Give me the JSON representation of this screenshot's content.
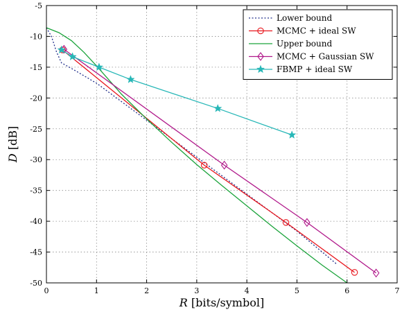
{
  "chart_data": {
    "type": "line",
    "xlabel": "R [bits/symbol]",
    "ylabel": "D [dB]",
    "xlim": [
      0,
      7
    ],
    "ylim": [
      -50,
      -5
    ],
    "xticks": [
      0,
      1,
      2,
      3,
      4,
      5,
      6,
      7
    ],
    "yticks": [
      -5,
      -10,
      -15,
      -20,
      -25,
      -30,
      -35,
      -40,
      -45,
      -50
    ],
    "grid": true,
    "legend_position": "top-right",
    "series": [
      {
        "name": "Lower bound",
        "color": "#1f2d8a",
        "style": "dotted",
        "marker": "none",
        "x": [
          0,
          0.1,
          0.2,
          0.3,
          0.5,
          1.0,
          2.0,
          3.0,
          4.0,
          5.0,
          5.8
        ],
        "y": [
          -8.6,
          -10.0,
          -12.5,
          -14.3,
          -15.2,
          -17.6,
          -23.6,
          -29.6,
          -35.6,
          -41.6,
          -47.0
        ]
      },
      {
        "name": "MCMC + ideal SW",
        "color": "#e8141b",
        "style": "solid",
        "marker": "circle",
        "x": [
          0.32,
          3.15,
          4.78,
          6.15
        ],
        "y": [
          -12.2,
          -30.9,
          -40.2,
          -48.3
        ]
      },
      {
        "name": "Upper bound",
        "color": "#1aa33a",
        "style": "solid",
        "marker": "none",
        "x": [
          0,
          0.25,
          0.5,
          0.75,
          1.0,
          1.5,
          2.0,
          2.5,
          3.0,
          3.5,
          4.0,
          4.5,
          5.0,
          5.5,
          6.0
        ],
        "y": [
          -8.6,
          -9.4,
          -10.7,
          -12.6,
          -14.8,
          -19.4,
          -23.4,
          -27.2,
          -30.8,
          -34.2,
          -37.5,
          -40.8,
          -44.0,
          -47.1,
          -50.0
        ]
      },
      {
        "name": "MCMC + Gaussian SW",
        "color": "#b0188a",
        "style": "solid",
        "marker": "diamond",
        "x": [
          0.35,
          3.55,
          5.2,
          6.58
        ],
        "y": [
          -12.1,
          -30.9,
          -40.2,
          -48.4
        ]
      },
      {
        "name": "FBMP + ideal SW",
        "color": "#27b7b7",
        "style": "solid",
        "marker": "star",
        "x": [
          0.3,
          0.52,
          1.05,
          1.68,
          3.42,
          4.9
        ],
        "y": [
          -12.2,
          -13.3,
          -15.0,
          -17.0,
          -21.7,
          -26.0
        ]
      }
    ]
  }
}
